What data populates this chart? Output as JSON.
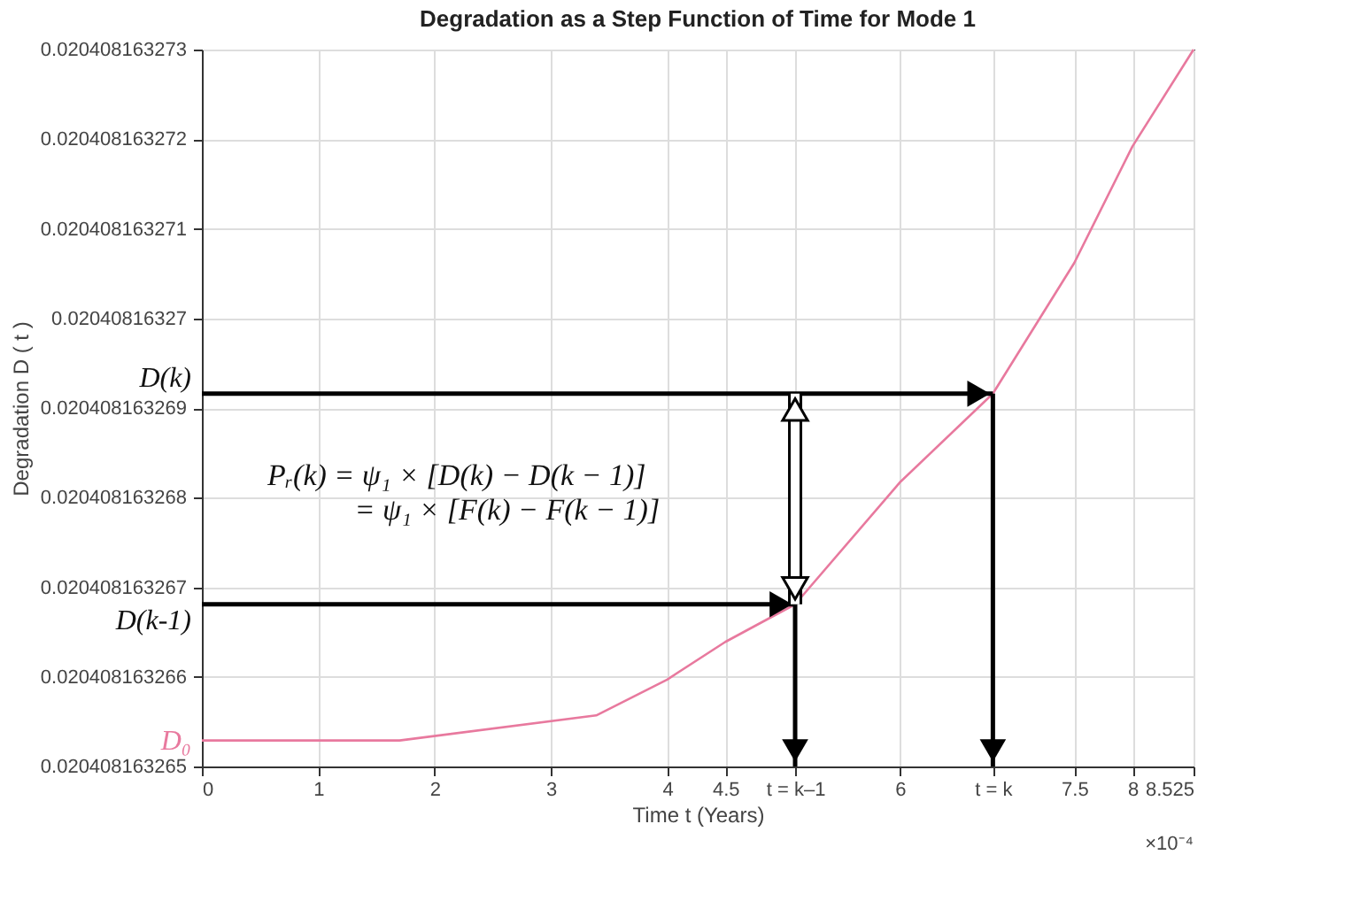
{
  "chart_data": {
    "type": "line",
    "title": "Degradation as a Step Function of Time for Mode 1",
    "xlabel": "Time t (Years)",
    "ylabel": "Degradation D ( t )",
    "x": [
      0,
      1.7,
      3.39,
      4,
      4.5,
      5.1,
      6,
      6.8,
      7.5,
      8,
      8.525
    ],
    "series": [
      {
        "color": "#e8799e",
        "values": [
          0.02040816326529,
          0.02040816326529,
          0.02040816326557,
          0.02040816326597,
          0.02040816326639,
          0.02040816326681,
          0.02040816326817,
          0.02040816326916,
          0.02040816327062,
          0.02040816327192,
          0.020408163273
        ]
      }
    ],
    "xlim": [
      0,
      8.525
    ],
    "ylim": [
      0.020408163265,
      0.020408163273
    ],
    "xticks": [
      0,
      1,
      2,
      3,
      4,
      4.5,
      {
        "value": 5.1,
        "label": "t = k–1"
      },
      6,
      {
        "value": 6.8,
        "label": "t = k"
      },
      7.5,
      8,
      8.525
    ],
    "yticks": [
      0.020408163265,
      0.020408163266,
      0.020408163267,
      0.020408163268,
      0.020408163269,
      0.02040816327,
      0.020408163271,
      0.020408163272,
      0.020408163273
    ],
    "grid": true,
    "marker": "none",
    "line_style": "solid",
    "annotations": [
      "×10⁻⁴",
      "Pᵣ(k) = ψ₁ × [D(k) − D(k − 1)]",
      "= ψ₁ × [F(k) − F(k − 1)]",
      {
        "text": "D(k)",
        "x": 6.8,
        "y": 0.02040816326916
      },
      {
        "text": "D(k-1)",
        "x": 5.1,
        "y": 0.02040816326681
      },
      {
        "text": "D₀",
        "x": 0,
        "y": 0.02040816326529
      }
    ]
  }
}
